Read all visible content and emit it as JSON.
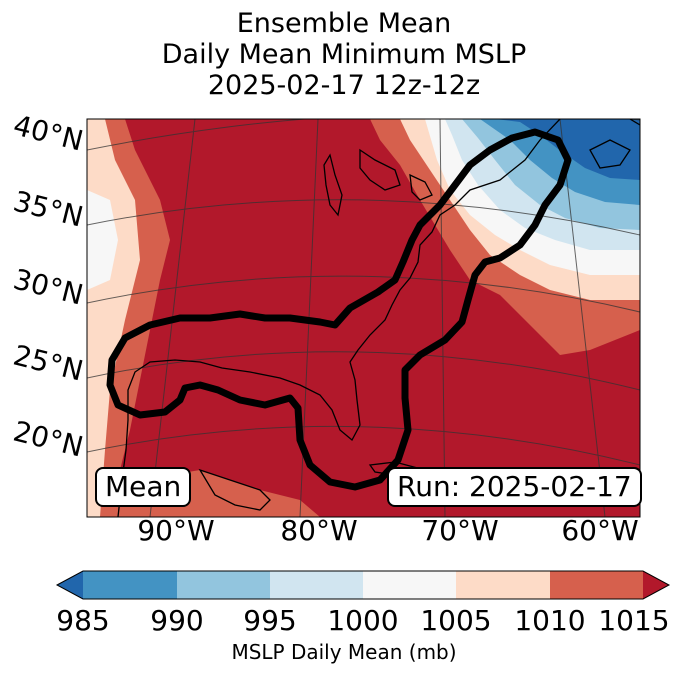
{
  "title": {
    "line1": "Ensemble Mean",
    "line2": "Daily Mean Minimum MSLP",
    "line3": "2025-02-17 12z-12z"
  },
  "map": {
    "lat_labels": [
      "40°N",
      "35°N",
      "30°N",
      "25°N",
      "20°N"
    ],
    "lon_labels": [
      "90°W",
      "80°W",
      "70°W",
      "60°W"
    ],
    "mean_box": "Mean",
    "run_box": "Run: 2025-02-17"
  },
  "colorbar": {
    "ticks": [
      "985",
      "990",
      "995",
      "1000",
      "1005",
      "1010",
      "1015"
    ],
    "label": "MSLP Daily Mean (mb)",
    "colors": {
      "below": "#2166ac",
      "c985_990": "#4393c3",
      "c990_995": "#92c5de",
      "c995_1000": "#d1e5f0",
      "c1000_1005": "#f7f7f7",
      "c1005_1010": "#fddbc7",
      "c1010_1015": "#d6604d",
      "above": "#b2182b"
    }
  }
}
